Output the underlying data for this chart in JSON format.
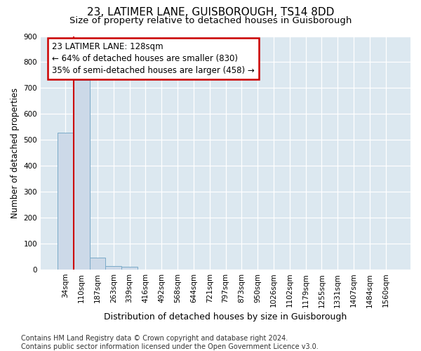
{
  "title1": "23, LATIMER LANE, GUISBOROUGH, TS14 8DD",
  "title2": "Size of property relative to detached houses in Guisborough",
  "xlabel": "Distribution of detached houses by size in Guisborough",
  "ylabel": "Number of detached properties",
  "footnote1": "Contains HM Land Registry data © Crown copyright and database right 2024.",
  "footnote2": "Contains public sector information licensed under the Open Government Licence v3.0.",
  "categories": [
    "34sqm",
    "110sqm",
    "187sqm",
    "263sqm",
    "339sqm",
    "416sqm",
    "492sqm",
    "568sqm",
    "644sqm",
    "721sqm",
    "797sqm",
    "873sqm",
    "950sqm",
    "1026sqm",
    "1102sqm",
    "1179sqm",
    "1255sqm",
    "1331sqm",
    "1407sqm",
    "1484sqm",
    "1560sqm"
  ],
  "values": [
    527,
    730,
    47,
    13,
    10,
    0,
    0,
    0,
    0,
    0,
    0,
    0,
    0,
    0,
    0,
    0,
    0,
    0,
    0,
    0,
    0
  ],
  "bar_color": "#ccd9e8",
  "bar_edge_color": "#7aaac8",
  "vline_index": 1,
  "vline_color": "#cc0000",
  "annotation_title": "23 LATIMER LANE: 128sqm",
  "annotation_line1": "← 64% of detached houses are smaller (830)",
  "annotation_line2": "35% of semi-detached houses are larger (458) →",
  "annotation_box_color": "#cc0000",
  "ylim": [
    0,
    900
  ],
  "yticks": [
    0,
    100,
    200,
    300,
    400,
    500,
    600,
    700,
    800,
    900
  ],
  "fig_bg_color": "#ffffff",
  "plot_bg_color": "#dce8f0",
  "grid_color": "#ffffff",
  "title1_fontsize": 11,
  "title2_fontsize": 9.5,
  "xlabel_fontsize": 9,
  "ylabel_fontsize": 8.5,
  "tick_fontsize": 7.5,
  "footnote_fontsize": 7,
  "ann_fontsize": 8.5
}
